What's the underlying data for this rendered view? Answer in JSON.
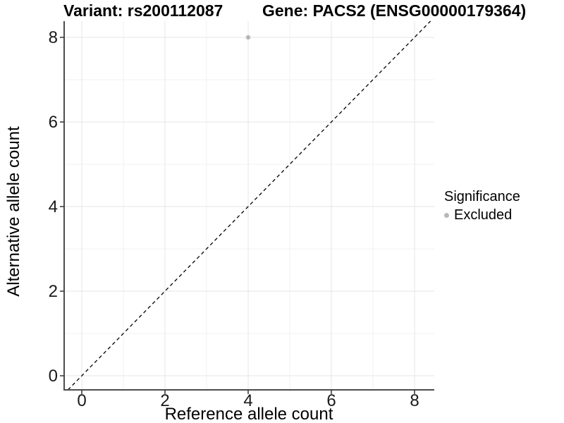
{
  "titles": {
    "variant": "Variant: rs200112087",
    "gene": "Gene: PACS2 (ENSG00000179364)"
  },
  "chart_data": {
    "type": "scatter",
    "title_left": "Variant: rs200112087",
    "title_right": "Gene: PACS2 (ENSG00000179364)",
    "xlabel": "Reference allele count",
    "ylabel": "Alternative allele count",
    "xlim": [
      -0.42,
      8.47
    ],
    "ylim": [
      -0.33,
      8.38
    ],
    "xticks": [
      0,
      2,
      4,
      6,
      8
    ],
    "yticks": [
      0,
      2,
      4,
      6,
      8
    ],
    "minor_xticks": [
      1,
      3,
      5,
      7
    ],
    "minor_yticks": [
      1,
      3,
      5,
      7
    ],
    "grid": true,
    "reference_line": {
      "type": "identity y=x",
      "style": "dashed",
      "color": "#000000"
    },
    "series": [
      {
        "name": "Excluded",
        "color": "#b8b8b8",
        "points": [
          {
            "x": 4,
            "y": 8
          }
        ]
      }
    ],
    "legend": {
      "title": "Significance",
      "position": "right",
      "items": [
        {
          "label": "Excluded",
          "color": "#b8b8b8"
        }
      ]
    }
  },
  "colors": {
    "grid_major": "#e6e6e6",
    "grid_minor": "#f2f2f2",
    "axis_line": "#4d4d4d",
    "tick_mark": "#333333",
    "tick_text": "#1a1a1a",
    "point": "#b8b8b8",
    "background": "#ffffff"
  }
}
